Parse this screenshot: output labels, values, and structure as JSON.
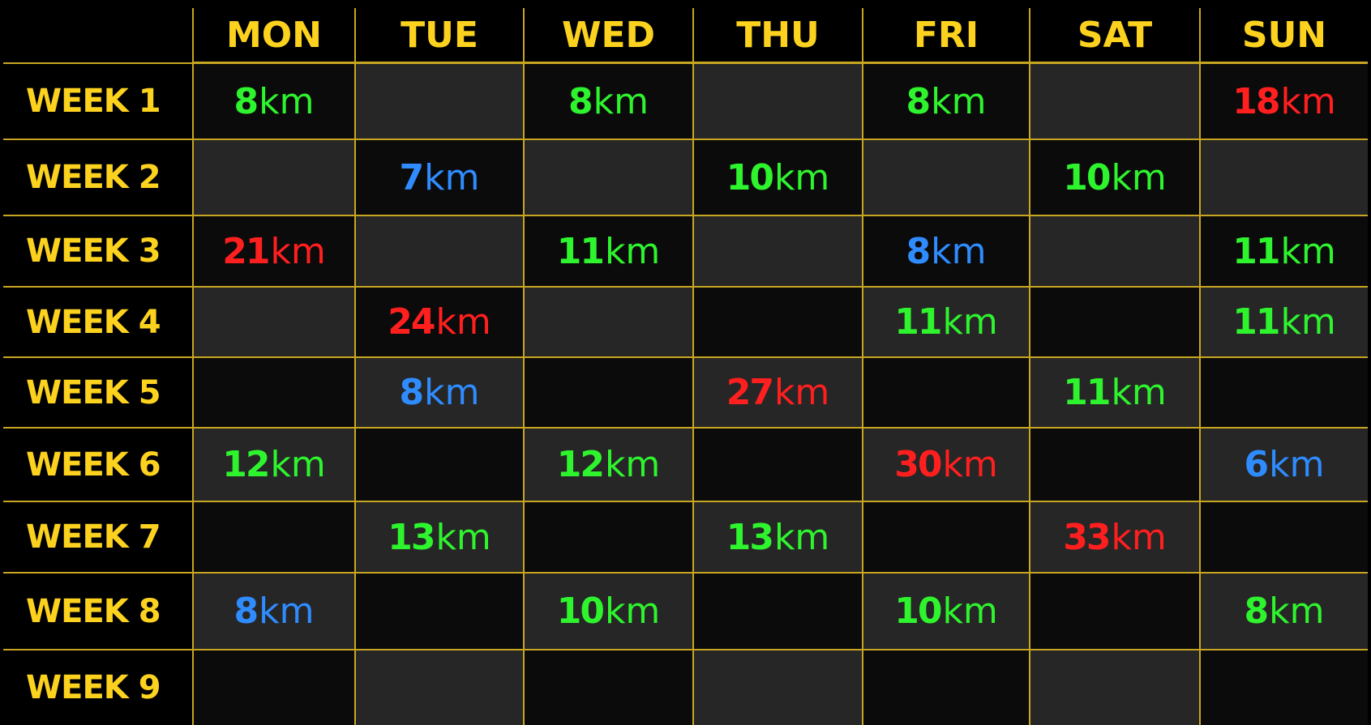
{
  "colors": {
    "header_text": "#fcd21f",
    "grid_line": "#c9a621",
    "cell_dark": "#0b0b0b",
    "cell_grey": "#262626",
    "green": "#2ef42e",
    "blue": "#2f8cff",
    "red": "#ff1f1f"
  },
  "days": [
    "MON",
    "TUE",
    "WED",
    "THU",
    "FRI",
    "SAT",
    "SUN"
  ],
  "weeks": [
    {
      "label": "WEEK 1",
      "cells": [
        {
          "num": "8",
          "unit": "km",
          "color": "green"
        },
        null,
        {
          "num": "8",
          "unit": "km",
          "color": "green"
        },
        null,
        {
          "num": "8",
          "unit": "km",
          "color": "green"
        },
        null,
        {
          "num": "18",
          "unit": "km",
          "color": "red"
        }
      ]
    },
    {
      "label": "WEEK 2",
      "cells": [
        null,
        {
          "num": "7",
          "unit": "km",
          "color": "blue"
        },
        null,
        {
          "num": "10",
          "unit": "km",
          "color": "green"
        },
        null,
        {
          "num": "10",
          "unit": "km",
          "color": "green"
        },
        null
      ]
    },
    {
      "label": "WEEK 3",
      "cells": [
        {
          "num": "21",
          "unit": "km",
          "color": "red"
        },
        null,
        {
          "num": "11",
          "unit": "km",
          "color": "green"
        },
        null,
        {
          "num": "8",
          "unit": "km",
          "color": "blue"
        },
        null,
        {
          "num": "11",
          "unit": "km",
          "color": "green"
        }
      ]
    },
    {
      "label": "WEEK 4",
      "cells": [
        null,
        {
          "num": "24",
          "unit": "km",
          "color": "red"
        },
        null,
        null,
        {
          "num": "11",
          "unit": "km",
          "color": "green"
        },
        null,
        {
          "num": "11",
          "unit": "km",
          "color": "green"
        }
      ]
    },
    {
      "label": "WEEK 5",
      "cells": [
        null,
        {
          "num": "8",
          "unit": "km",
          "color": "blue"
        },
        null,
        {
          "num": "27",
          "unit": "km",
          "color": "red"
        },
        null,
        {
          "num": "11",
          "unit": "km",
          "color": "green"
        },
        null
      ]
    },
    {
      "label": "WEEK 6",
      "cells": [
        {
          "num": "12",
          "unit": "km",
          "color": "green"
        },
        null,
        {
          "num": "12",
          "unit": "km",
          "color": "green"
        },
        null,
        {
          "num": "30",
          "unit": "km",
          "color": "red"
        },
        null,
        {
          "num": "6",
          "unit": "km",
          "color": "blue"
        }
      ]
    },
    {
      "label": "WEEK 7",
      "cells": [
        null,
        {
          "num": "13",
          "unit": "km",
          "color": "green"
        },
        null,
        {
          "num": "13",
          "unit": "km",
          "color": "green"
        },
        null,
        {
          "num": "33",
          "unit": "km",
          "color": "red"
        },
        null
      ]
    },
    {
      "label": "WEEK 8",
      "cells": [
        {
          "num": "8",
          "unit": "km",
          "color": "blue"
        },
        null,
        {
          "num": "10",
          "unit": "km",
          "color": "green"
        },
        null,
        {
          "num": "10",
          "unit": "km",
          "color": "green"
        },
        null,
        {
          "num": "8",
          "unit": "km",
          "color": "green"
        }
      ]
    },
    {
      "label": "WEEK 9",
      "cells": [
        null,
        null,
        null,
        null,
        null,
        null,
        null
      ]
    }
  ]
}
